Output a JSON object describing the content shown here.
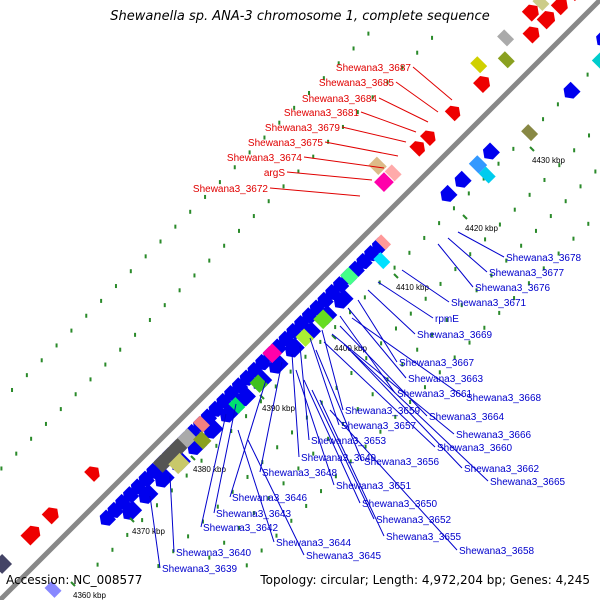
{
  "title": "Shewanella sp. ANA-3 chromosome 1, complete sequence",
  "accession": "Accession: NC_008577",
  "summary": "Topology: circular; Length: 4,972,204 bp; Genes: 4,245",
  "colors": {
    "reverse_strand_labels": "#e00000",
    "forward_strand_labels": "#0000cc",
    "backbone": "#888888",
    "gc_dots": "#2a8a2a"
  },
  "scale_ticks": [
    "4430 kbp",
    "4420 kbp",
    "4410 kbp",
    "4400 kbp",
    "4390 kbp",
    "4380 kbp",
    "4370 kbp",
    "4360 kbp"
  ],
  "top_labels": [
    "Shewana3_3687",
    "Shewana3_3685",
    "Shewana3_3684",
    "Shewana3_3681",
    "Shewana3_3679",
    "Shewana3_3675",
    "Shewana3_3674",
    "argS",
    "Shewana3_3672"
  ],
  "bottom_labels": [
    "Shewana3_3678",
    "Shewana3_3677",
    "Shewana3_3676",
    "Shewana3_3671",
    "rpmE",
    "Shewana3_3669",
    "Shewana3_3667",
    "Shewana3_3663",
    "Shewana3_3661",
    "Shewana3_3668",
    "Shewana3_3659",
    "Shewana3_3664",
    "Shewana3_3657",
    "Shewana3_3666",
    "Shewana3_3653",
    "Shewana3_3660",
    "Shewana3_3649",
    "Shewana3_3656",
    "Shewana3_3662",
    "Shewana3_3648",
    "Shewana3_3665",
    "Shewana3_3651",
    "Shewana3_3646",
    "Shewana3_3650",
    "Shewana3_3643",
    "Shewana3_3652",
    "Shewana3_3642",
    "Shewana3_3655",
    "Shewana3_3644",
    "Shewana3_3658",
    "Shewana3_3645",
    "Shewana3_3640",
    "Shewana3_3639"
  ]
}
